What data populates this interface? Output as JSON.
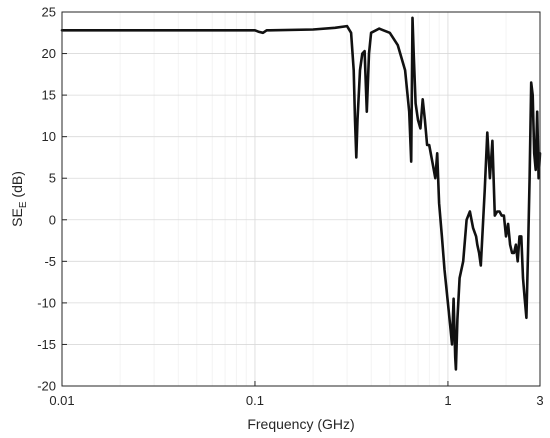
{
  "chart_data": {
    "type": "line",
    "title": "",
    "xlabel": "Frequency (GHz)",
    "ylabel_main": "SE",
    "ylabel_sub": "E",
    "ylabel_unit": " (dB)",
    "x_scale": "log",
    "xlim": [
      0.01,
      3
    ],
    "ylim": [
      -20,
      25
    ],
    "x_ticks": [
      {
        "value": 0.01,
        "label": "0.01"
      },
      {
        "value": 0.1,
        "label": "0.1"
      },
      {
        "value": 1,
        "label": "1"
      },
      {
        "value": 3,
        "label": "3"
      }
    ],
    "y_ticks": [
      {
        "value": -20,
        "label": "-20"
      },
      {
        "value": -15,
        "label": "-15"
      },
      {
        "value": -10,
        "label": "-10"
      },
      {
        "value": -5,
        "label": "-5"
      },
      {
        "value": 0,
        "label": "0"
      },
      {
        "value": 5,
        "label": "5"
      },
      {
        "value": 10,
        "label": "10"
      },
      {
        "value": 15,
        "label": "15"
      },
      {
        "value": 20,
        "label": "20"
      },
      {
        "value": 25,
        "label": "25"
      }
    ],
    "grid": true,
    "series": [
      {
        "color": "#111111",
        "x": [
          0.01,
          0.03,
          0.06,
          0.1,
          0.105,
          0.11,
          0.115,
          0.12,
          0.2,
          0.26,
          0.3,
          0.315,
          0.325,
          0.33,
          0.335,
          0.34,
          0.35,
          0.36,
          0.37,
          0.38,
          0.39,
          0.4,
          0.44,
          0.5,
          0.55,
          0.6,
          0.63,
          0.645,
          0.655,
          0.665,
          0.68,
          0.7,
          0.72,
          0.74,
          0.76,
          0.78,
          0.8,
          0.83,
          0.86,
          0.88,
          0.9,
          0.93,
          0.96,
          1.0,
          1.03,
          1.05,
          1.07,
          1.09,
          1.1,
          1.12,
          1.15,
          1.2,
          1.25,
          1.3,
          1.35,
          1.4,
          1.42,
          1.45,
          1.48,
          1.5,
          1.55,
          1.6,
          1.65,
          1.7,
          1.75,
          1.8,
          1.85,
          1.9,
          1.95,
          2.0,
          2.05,
          2.1,
          2.15,
          2.2,
          2.25,
          2.3,
          2.35,
          2.4,
          2.45,
          2.5,
          2.55,
          2.6,
          2.65,
          2.7,
          2.75,
          2.8,
          2.85,
          2.9,
          2.95,
          3.0
        ],
        "y": [
          22.8,
          22.8,
          22.8,
          22.8,
          22.6,
          22.5,
          22.8,
          22.8,
          22.9,
          23.1,
          23.3,
          22.5,
          18.0,
          12.0,
          7.5,
          12.0,
          18.0,
          20.0,
          20.3,
          13.0,
          20.0,
          22.5,
          23.0,
          22.5,
          21.0,
          18.0,
          13.0,
          7.0,
          24.3,
          20.0,
          14.0,
          12.0,
          11.0,
          14.5,
          12.0,
          9.0,
          9.0,
          7.0,
          5.0,
          8.0,
          2.0,
          -2.0,
          -6.0,
          -10.0,
          -13.0,
          -15.0,
          -9.5,
          -16.5,
          -18.0,
          -12.0,
          -7.0,
          -5.0,
          0.0,
          1.0,
          -1.0,
          -2.0,
          -3.0,
          -4.0,
          -5.5,
          -3.0,
          3.5,
          10.5,
          5.0,
          9.5,
          0.5,
          1.0,
          1.0,
          0.5,
          0.5,
          -2.0,
          -0.5,
          -3.0,
          -4.0,
          -4.0,
          -3.0,
          -5.0,
          -2.0,
          -2.0,
          -7.0,
          -9.5,
          -11.8,
          -4.0,
          5.0,
          16.5,
          15.0,
          8.0,
          6.0,
          13.0,
          5.0,
          8.0
        ]
      }
    ]
  }
}
